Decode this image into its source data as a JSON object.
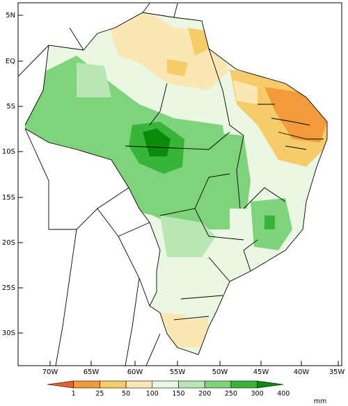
{
  "map": {
    "units": "mm",
    "lat_labels": [
      "5N",
      "EQ",
      "5S",
      "10S",
      "15S",
      "20S",
      "25S",
      "30S"
    ],
    "lon_labels": [
      "70W",
      "65W",
      "60W",
      "55W",
      "50W",
      "45W",
      "40W",
      "35W"
    ],
    "extent": {
      "lon_min": -74,
      "lon_max": -34,
      "lat_min": -34,
      "lat_max": 6
    },
    "colorbar": {
      "labels": [
        "1",
        "25",
        "50",
        "100",
        "150",
        "200",
        "250",
        "300",
        "400"
      ],
      "colors": [
        "#e8602a",
        "#f39a3c",
        "#f6cc6a",
        "#fbe7b4",
        "#e9f7e3",
        "#b9e7b4",
        "#7fd37a",
        "#39b43a",
        "#0a8a0a"
      ]
    }
  }
}
